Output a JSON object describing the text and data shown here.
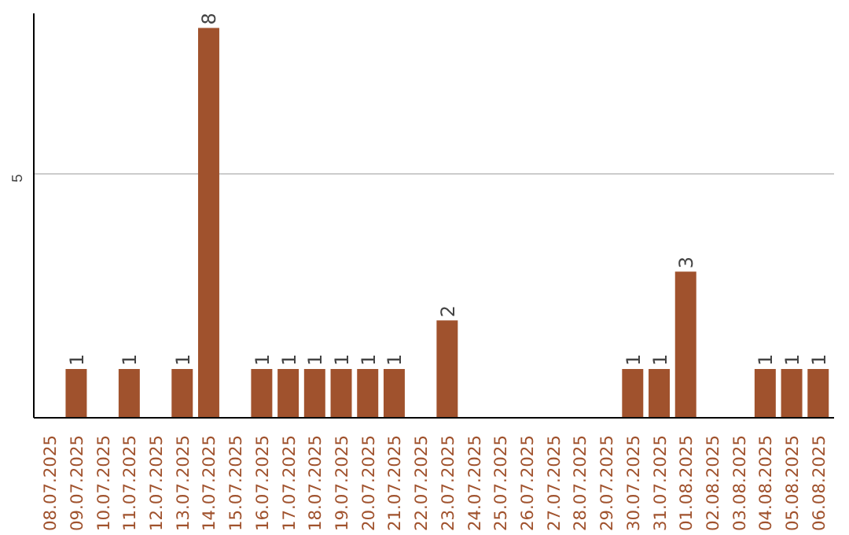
{
  "chart_data": {
    "type": "bar",
    "color": "#a0522d",
    "categories": [
      "08.07.2025",
      "09.07.2025",
      "10.07.2025",
      "11.07.2025",
      "12.07.2025",
      "13.07.2025",
      "14.07.2025",
      "15.07.2025",
      "16.07.2025",
      "17.07.2025",
      "18.07.2025",
      "19.07.2025",
      "20.07.2025",
      "21.07.2025",
      "22.07.2025",
      "23.07.2025",
      "24.07.2025",
      "25.07.2025",
      "26.07.2025",
      "27.07.2025",
      "28.07.2025",
      "29.07.2025",
      "30.07.2025",
      "31.07.2025",
      "01.08.2025",
      "02.08.2025",
      "03.08.2025",
      "04.08.2025",
      "05.08.2025",
      "06.08.2025"
    ],
    "values": [
      0,
      1,
      0,
      1,
      0,
      1,
      8,
      0,
      1,
      1,
      1,
      1,
      1,
      1,
      0,
      2,
      0,
      0,
      0,
      0,
      0,
      0,
      1,
      1,
      3,
      0,
      0,
      1,
      1,
      1
    ],
    "value_labels": [
      null,
      "1",
      null,
      "1",
      null,
      "1",
      "8",
      null,
      "1",
      "1",
      "1",
      "1",
      "1",
      "1",
      null,
      "2",
      null,
      null,
      null,
      null,
      null,
      null,
      "1",
      "1",
      "3",
      null,
      null,
      "1",
      "1",
      "1"
    ],
    "ylim": [
      0,
      8.3
    ],
    "yticks": [
      5
    ],
    "grid": "y"
  }
}
